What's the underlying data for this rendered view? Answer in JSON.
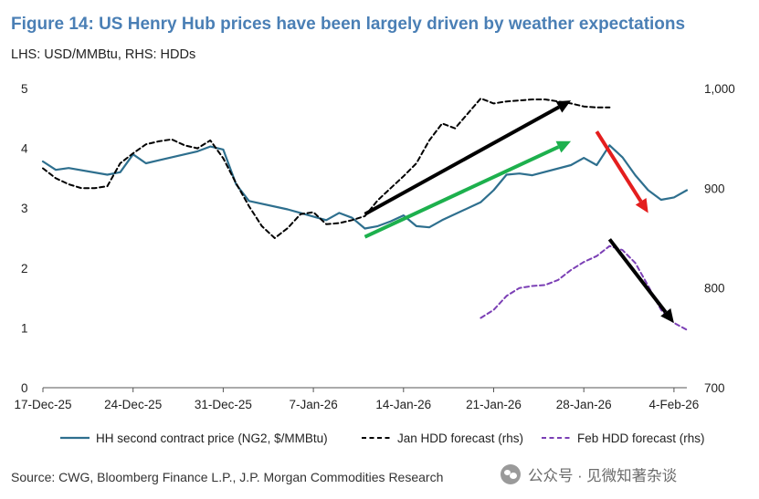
{
  "header": {
    "title": "Figure 14: US Henry Hub prices have been largely driven by weather expectations",
    "subtitle": "LHS: USD/MMBtu, RHS: HDDs"
  },
  "footer": {
    "source": "Source: CWG, Bloomberg Finance L.P., J.P. Morgan Commodities Research",
    "watermark": "公众号 · 见微知著杂谈"
  },
  "chart_data": {
    "type": "line",
    "title": "Figure 14: US Henry Hub prices have been largely driven by weather expectations",
    "xlabel": "",
    "ylabel": "USD/MMBtu",
    "y2label": "HDDs",
    "x_ticks": [
      "17-Dec-25",
      "24-Dec-25",
      "31-Dec-25",
      "7-Jan-26",
      "14-Jan-26",
      "21-Jan-26",
      "28-Jan-26",
      "4-Feb-26"
    ],
    "ylim": [
      0,
      5
    ],
    "y_ticks": [
      "0",
      "1",
      "2",
      "3",
      "4",
      "5"
    ],
    "y2lim": [
      700,
      1000
    ],
    "y2_ticks": [
      "700",
      "800",
      "900",
      "1,000"
    ],
    "grid": false,
    "legend_position": "bottom",
    "series": [
      {
        "name": "HH second contract price (NG2, $/MMBtu)",
        "axis": "left",
        "color": "#2e6f8e",
        "style": "solid",
        "points": [
          [
            "2025-12-17",
            3.78
          ],
          [
            "2025-12-18",
            3.64
          ],
          [
            "2025-12-19",
            3.67
          ],
          [
            "2025-12-22",
            3.56
          ],
          [
            "2025-12-23",
            3.6
          ],
          [
            "2025-12-24",
            3.9
          ],
          [
            "2025-12-25",
            3.75
          ],
          [
            "2025-12-26",
            3.8
          ],
          [
            "2025-12-29",
            3.95
          ],
          [
            "2025-12-30",
            4.03
          ],
          [
            "2025-12-31",
            3.98
          ],
          [
            "2026-01-01",
            3.4
          ],
          [
            "2026-01-02",
            3.12
          ],
          [
            "2026-01-05",
            2.98
          ],
          [
            "2026-01-06",
            2.92
          ],
          [
            "2026-01-07",
            2.86
          ],
          [
            "2026-01-08",
            2.8
          ],
          [
            "2026-01-09",
            2.92
          ],
          [
            "2026-01-10",
            2.84
          ],
          [
            "2026-01-11",
            2.66
          ],
          [
            "2026-01-12",
            2.7
          ],
          [
            "2026-01-13",
            2.78
          ],
          [
            "2026-01-14",
            2.88
          ],
          [
            "2026-01-15",
            2.7
          ],
          [
            "2026-01-16",
            2.68
          ],
          [
            "2026-01-17",
            2.8
          ],
          [
            "2026-01-20",
            3.1
          ],
          [
            "2026-01-21",
            3.3
          ],
          [
            "2026-01-22",
            3.56
          ],
          [
            "2026-01-23",
            3.58
          ],
          [
            "2026-01-24",
            3.55
          ],
          [
            "2026-01-27",
            3.72
          ],
          [
            "2026-01-28",
            3.84
          ],
          [
            "2026-01-29",
            3.72
          ],
          [
            "2026-01-30",
            4.05
          ],
          [
            "2026-01-31",
            3.85
          ],
          [
            "2026-02-01",
            3.55
          ],
          [
            "2026-02-02",
            3.3
          ],
          [
            "2026-02-03",
            3.14
          ],
          [
            "2026-02-04",
            3.18
          ],
          [
            "2026-02-05",
            3.3
          ]
        ]
      },
      {
        "name": "Jan HDD forecast (rhs)",
        "axis": "right",
        "color": "#000000",
        "style": "dashed",
        "points": [
          [
            "2025-12-17",
            920
          ],
          [
            "2025-12-18",
            910
          ],
          [
            "2025-12-19",
            904
          ],
          [
            "2025-12-20",
            900
          ],
          [
            "2025-12-21",
            900
          ],
          [
            "2025-12-22",
            902
          ],
          [
            "2025-12-23",
            925
          ],
          [
            "2025-12-24",
            935
          ],
          [
            "2025-12-25",
            944
          ],
          [
            "2025-12-26",
            947
          ],
          [
            "2025-12-27",
            949
          ],
          [
            "2025-12-28",
            943
          ],
          [
            "2025-12-29",
            940
          ],
          [
            "2025-12-30",
            948
          ],
          [
            "2025-12-31",
            930
          ],
          [
            "2026-01-01",
            905
          ],
          [
            "2026-01-02",
            882
          ],
          [
            "2026-01-03",
            862
          ],
          [
            "2026-01-04",
            850
          ],
          [
            "2026-01-05",
            860
          ],
          [
            "2026-01-06",
            874
          ],
          [
            "2026-01-07",
            876
          ],
          [
            "2026-01-08",
            864
          ],
          [
            "2026-01-09",
            865
          ],
          [
            "2026-01-10",
            868
          ],
          [
            "2026-01-11",
            872
          ],
          [
            "2026-01-12",
            888
          ],
          [
            "2026-01-13",
            900
          ],
          [
            "2026-01-14",
            912
          ],
          [
            "2026-01-15",
            925
          ],
          [
            "2026-01-16",
            948
          ],
          [
            "2026-01-17",
            965
          ],
          [
            "2026-01-18",
            960
          ],
          [
            "2026-01-19",
            975
          ],
          [
            "2026-01-20",
            990
          ],
          [
            "2026-01-21",
            985
          ],
          [
            "2026-01-22",
            987
          ],
          [
            "2026-01-23",
            988
          ],
          [
            "2026-01-24",
            989
          ],
          [
            "2026-01-25",
            989
          ],
          [
            "2026-01-26",
            987
          ],
          [
            "2026-01-27",
            985
          ],
          [
            "2026-01-28",
            982
          ],
          [
            "2026-01-29",
            981
          ],
          [
            "2026-01-30",
            981
          ]
        ]
      },
      {
        "name": "Feb HDD forecast (rhs)",
        "axis": "right",
        "color": "#7b3fb5",
        "style": "dashed",
        "points": [
          [
            "2026-01-20",
            770
          ],
          [
            "2026-01-21",
            778
          ],
          [
            "2026-01-22",
            792
          ],
          [
            "2026-01-23",
            800
          ],
          [
            "2026-01-24",
            802
          ],
          [
            "2026-01-25",
            803
          ],
          [
            "2026-01-26",
            808
          ],
          [
            "2026-01-27",
            818
          ],
          [
            "2026-01-28",
            826
          ],
          [
            "2026-01-29",
            832
          ],
          [
            "2026-01-30",
            842
          ],
          [
            "2026-01-31",
            838
          ],
          [
            "2026-02-01",
            825
          ],
          [
            "2026-02-02",
            802
          ],
          [
            "2026-02-03",
            778
          ],
          [
            "2026-02-04",
            765
          ],
          [
            "2026-02-05",
            758
          ]
        ]
      }
    ],
    "annotations": [
      {
        "type": "arrow",
        "color": "#000000",
        "from": [
          "2026-01-11",
          2.9
        ],
        "to": [
          "2026-01-27",
          4.8
        ]
      },
      {
        "type": "arrow",
        "color": "#1db04d",
        "from": [
          "2026-01-11",
          2.52
        ],
        "to": [
          "2026-01-27",
          4.12
        ]
      },
      {
        "type": "arrow",
        "color": "#e41e1e",
        "from": [
          "2026-01-29",
          4.28
        ],
        "to": [
          "2026-02-02",
          2.92
        ]
      },
      {
        "type": "arrow",
        "color": "#000000",
        "from": [
          "2026-01-30",
          2.48
        ],
        "to": [
          "2026-02-04",
          1.08
        ]
      }
    ]
  }
}
